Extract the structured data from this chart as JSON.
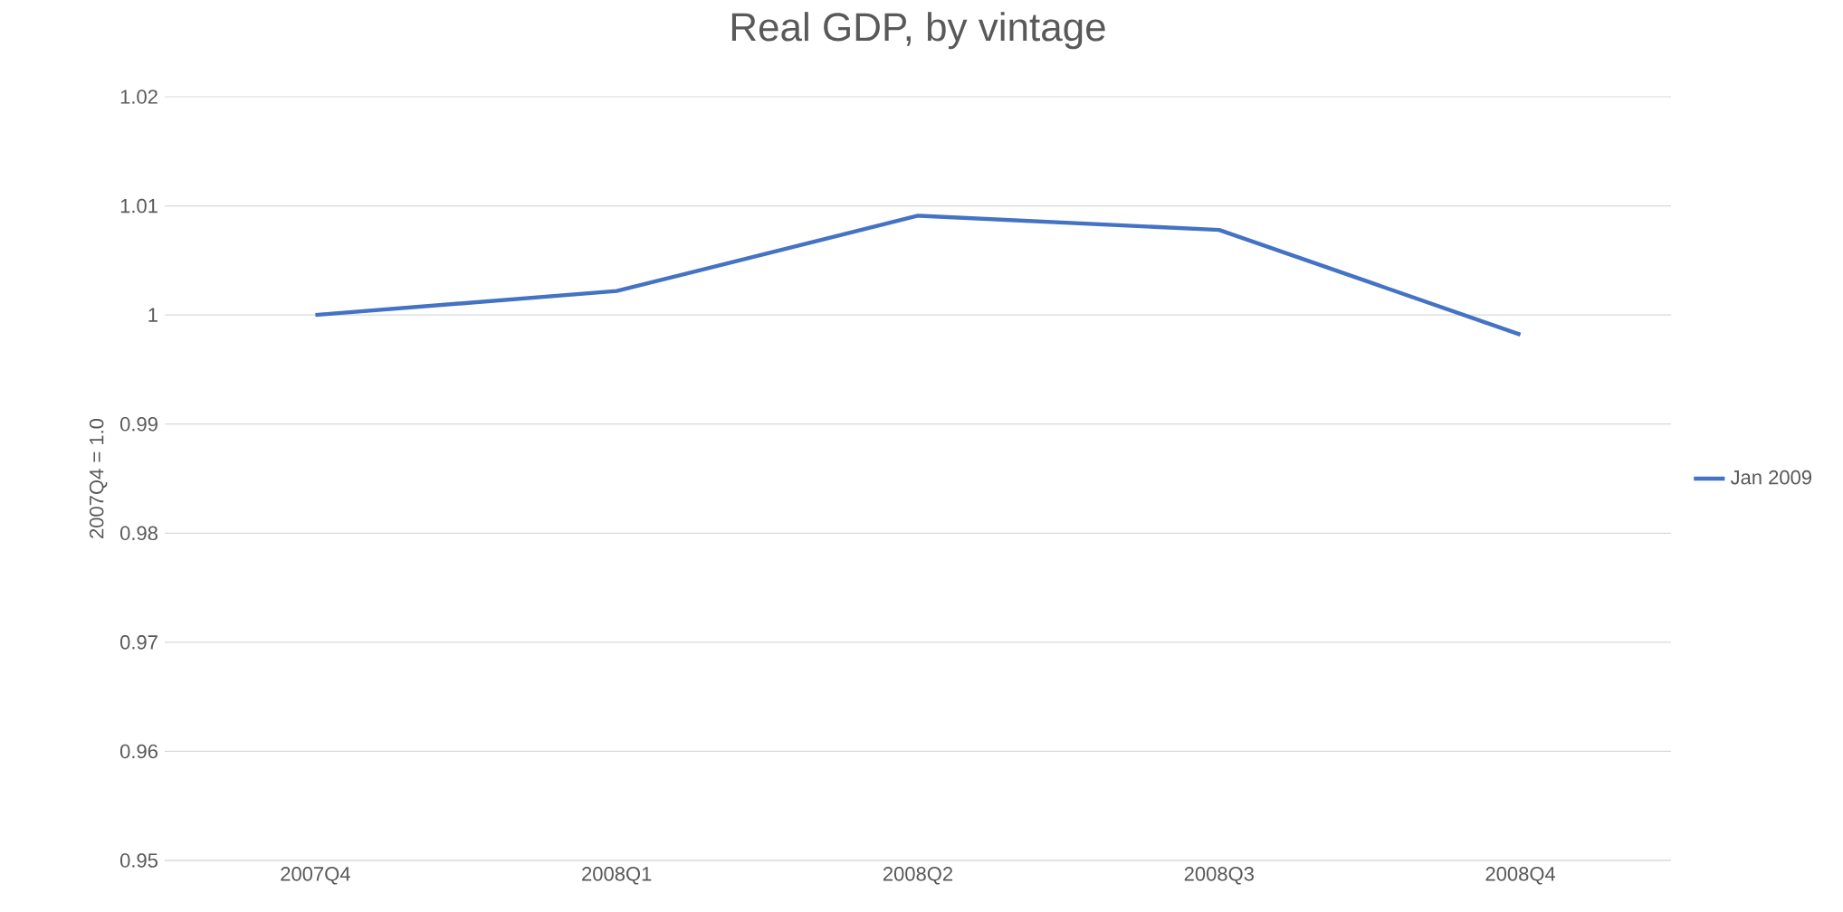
{
  "chart_data": {
    "type": "line",
    "title": "Real GDP, by vintage",
    "ylabel": "2007Q4 = 1.0",
    "categories": [
      "2007Q4",
      "2008Q1",
      "2008Q2",
      "2008Q3",
      "2008Q4"
    ],
    "series": [
      {
        "name": "Jan 2009",
        "color": "#4472c4",
        "values": [
          1.0,
          1.0022,
          1.0091,
          1.0078,
          0.9982
        ]
      }
    ],
    "ylim": [
      0.95,
      1.02
    ],
    "yticks": [
      0.95,
      0.96,
      0.97,
      0.98,
      0.99,
      1,
      1.01,
      1.02
    ],
    "grid": "y",
    "legend": "right",
    "marker": "none",
    "line_style": "solid"
  }
}
